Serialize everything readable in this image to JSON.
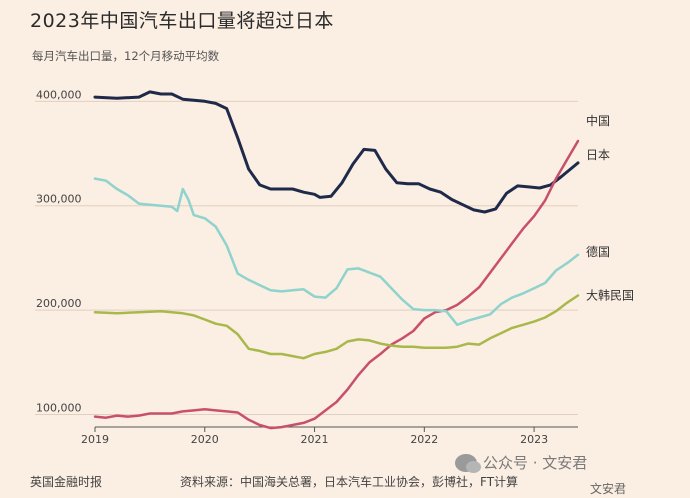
{
  "title": "2023年中国汽车出口量将超过日本",
  "subtitle": "每月汽车出口量，12个月移动平均数",
  "footer": {
    "publisher": "英国金融时报",
    "source": "资料来源：中国海关总署，日本汽车工业协会，彭博社，FT计算"
  },
  "watermark": {
    "text": "公众号 · 文安君",
    "corner": "文安君"
  },
  "chart_data": {
    "type": "line",
    "xlim": [
      2019.0,
      2023.4
    ],
    "ylim": [
      90000,
      430000
    ],
    "x_ticks": [
      {
        "value": 2019,
        "label": "2019"
      },
      {
        "value": 2020,
        "label": "2020"
      },
      {
        "value": 2021,
        "label": "2021"
      },
      {
        "value": 2022,
        "label": "2022"
      },
      {
        "value": 2023,
        "label": "2023"
      }
    ],
    "y_ticks": [
      {
        "value": 100000,
        "label": "100,000"
      },
      {
        "value": 200000,
        "label": "200,000"
      },
      {
        "value": 300000,
        "label": "300,000"
      },
      {
        "value": 400000,
        "label": "400,000"
      }
    ],
    "grid": "horizontal",
    "series": [
      {
        "name": "日本",
        "color": "#1f2a4a",
        "points": [
          [
            2019.0,
            404000
          ],
          [
            2019.2,
            403000
          ],
          [
            2019.4,
            404000
          ],
          [
            2019.5,
            409000
          ],
          [
            2019.6,
            407000
          ],
          [
            2019.7,
            407000
          ],
          [
            2019.8,
            402000
          ],
          [
            2019.9,
            401000
          ],
          [
            2020.0,
            400000
          ],
          [
            2020.1,
            398000
          ],
          [
            2020.2,
            393000
          ],
          [
            2020.3,
            365000
          ],
          [
            2020.4,
            335000
          ],
          [
            2020.5,
            320000
          ],
          [
            2020.6,
            316000
          ],
          [
            2020.7,
            316000
          ],
          [
            2020.8,
            316000
          ],
          [
            2020.9,
            313000
          ],
          [
            2021.0,
            311000
          ],
          [
            2021.05,
            308000
          ],
          [
            2021.15,
            309000
          ],
          [
            2021.25,
            322000
          ],
          [
            2021.35,
            340000
          ],
          [
            2021.45,
            354000
          ],
          [
            2021.55,
            353000
          ],
          [
            2021.65,
            335000
          ],
          [
            2021.75,
            322000
          ],
          [
            2021.85,
            321000
          ],
          [
            2021.95,
            321000
          ],
          [
            2022.05,
            316000
          ],
          [
            2022.15,
            313000
          ],
          [
            2022.25,
            306000
          ],
          [
            2022.35,
            301000
          ],
          [
            2022.45,
            296000
          ],
          [
            2022.55,
            294000
          ],
          [
            2022.65,
            297000
          ],
          [
            2022.75,
            312000
          ],
          [
            2022.85,
            319000
          ],
          [
            2022.95,
            318000
          ],
          [
            2023.05,
            317000
          ],
          [
            2023.15,
            320000
          ],
          [
            2023.25,
            328000
          ],
          [
            2023.4,
            341000
          ]
        ]
      },
      {
        "name": "中国",
        "color": "#c8506a",
        "points": [
          [
            2019.0,
            98000
          ],
          [
            2019.1,
            97000
          ],
          [
            2019.2,
            99000
          ],
          [
            2019.3,
            98000
          ],
          [
            2019.4,
            99000
          ],
          [
            2019.5,
            101000
          ],
          [
            2019.6,
            101000
          ],
          [
            2019.7,
            101000
          ],
          [
            2019.8,
            103000
          ],
          [
            2019.9,
            104000
          ],
          [
            2020.0,
            105000
          ],
          [
            2020.1,
            104000
          ],
          [
            2020.2,
            103000
          ],
          [
            2020.3,
            102000
          ],
          [
            2020.4,
            95000
          ],
          [
            2020.5,
            90000
          ],
          [
            2020.6,
            87000
          ],
          [
            2020.7,
            88000
          ],
          [
            2020.8,
            90000
          ],
          [
            2020.9,
            92000
          ],
          [
            2021.0,
            96000
          ],
          [
            2021.1,
            104000
          ],
          [
            2021.2,
            112000
          ],
          [
            2021.3,
            124000
          ],
          [
            2021.4,
            138000
          ],
          [
            2021.5,
            150000
          ],
          [
            2021.6,
            158000
          ],
          [
            2021.7,
            167000
          ],
          [
            2021.8,
            173000
          ],
          [
            2021.9,
            180000
          ],
          [
            2022.0,
            192000
          ],
          [
            2022.1,
            198000
          ],
          [
            2022.2,
            200000
          ],
          [
            2022.3,
            205000
          ],
          [
            2022.4,
            213000
          ],
          [
            2022.5,
            222000
          ],
          [
            2022.6,
            236000
          ],
          [
            2022.7,
            250000
          ],
          [
            2022.8,
            264000
          ],
          [
            2022.9,
            278000
          ],
          [
            2023.0,
            290000
          ],
          [
            2023.1,
            305000
          ],
          [
            2023.2,
            326000
          ],
          [
            2023.3,
            344000
          ],
          [
            2023.4,
            362000
          ]
        ]
      },
      {
        "name": "德国",
        "color": "#8ed3cc",
        "points": [
          [
            2019.0,
            326000
          ],
          [
            2019.1,
            324000
          ],
          [
            2019.2,
            316000
          ],
          [
            2019.3,
            310000
          ],
          [
            2019.4,
            302000
          ],
          [
            2019.5,
            301000
          ],
          [
            2019.6,
            300000
          ],
          [
            2019.7,
            299000
          ],
          [
            2019.75,
            295000
          ],
          [
            2019.8,
            316000
          ],
          [
            2019.85,
            306000
          ],
          [
            2019.9,
            291000
          ],
          [
            2020.0,
            288000
          ],
          [
            2020.1,
            280000
          ],
          [
            2020.2,
            262000
          ],
          [
            2020.3,
            235000
          ],
          [
            2020.4,
            229000
          ],
          [
            2020.5,
            224000
          ],
          [
            2020.6,
            219000
          ],
          [
            2020.7,
            218000
          ],
          [
            2020.8,
            219000
          ],
          [
            2020.9,
            220000
          ],
          [
            2021.0,
            213000
          ],
          [
            2021.1,
            212000
          ],
          [
            2021.2,
            221000
          ],
          [
            2021.3,
            239000
          ],
          [
            2021.4,
            240000
          ],
          [
            2021.5,
            236000
          ],
          [
            2021.6,
            232000
          ],
          [
            2021.7,
            221000
          ],
          [
            2021.8,
            210000
          ],
          [
            2021.9,
            201000
          ],
          [
            2022.0,
            200000
          ],
          [
            2022.1,
            200000
          ],
          [
            2022.2,
            199000
          ],
          [
            2022.3,
            186000
          ],
          [
            2022.4,
            190000
          ],
          [
            2022.5,
            193000
          ],
          [
            2022.6,
            196000
          ],
          [
            2022.7,
            206000
          ],
          [
            2022.8,
            212000
          ],
          [
            2022.9,
            216000
          ],
          [
            2023.0,
            221000
          ],
          [
            2023.1,
            226000
          ],
          [
            2023.2,
            238000
          ],
          [
            2023.3,
            245000
          ],
          [
            2023.4,
            253000
          ]
        ]
      },
      {
        "name": "大韩民国",
        "color": "#a8b84a",
        "points": [
          [
            2019.0,
            198000
          ],
          [
            2019.2,
            197000
          ],
          [
            2019.4,
            198000
          ],
          [
            2019.6,
            199000
          ],
          [
            2019.8,
            197000
          ],
          [
            2019.9,
            195000
          ],
          [
            2020.0,
            191000
          ],
          [
            2020.1,
            187000
          ],
          [
            2020.2,
            185000
          ],
          [
            2020.3,
            177000
          ],
          [
            2020.4,
            163000
          ],
          [
            2020.5,
            161000
          ],
          [
            2020.6,
            158000
          ],
          [
            2020.7,
            158000
          ],
          [
            2020.8,
            156000
          ],
          [
            2020.9,
            154000
          ],
          [
            2021.0,
            158000
          ],
          [
            2021.1,
            160000
          ],
          [
            2021.2,
            163000
          ],
          [
            2021.3,
            170000
          ],
          [
            2021.4,
            172000
          ],
          [
            2021.5,
            171000
          ],
          [
            2021.6,
            168000
          ],
          [
            2021.7,
            166000
          ],
          [
            2021.8,
            165000
          ],
          [
            2021.9,
            165000
          ],
          [
            2022.0,
            164000
          ],
          [
            2022.1,
            164000
          ],
          [
            2022.2,
            164000
          ],
          [
            2022.3,
            165000
          ],
          [
            2022.4,
            168000
          ],
          [
            2022.5,
            167000
          ],
          [
            2022.6,
            173000
          ],
          [
            2022.7,
            178000
          ],
          [
            2022.8,
            183000
          ],
          [
            2022.9,
            186000
          ],
          [
            2023.0,
            189000
          ],
          [
            2023.1,
            193000
          ],
          [
            2023.2,
            199000
          ],
          [
            2023.3,
            207000
          ],
          [
            2023.4,
            214000
          ]
        ]
      }
    ]
  }
}
